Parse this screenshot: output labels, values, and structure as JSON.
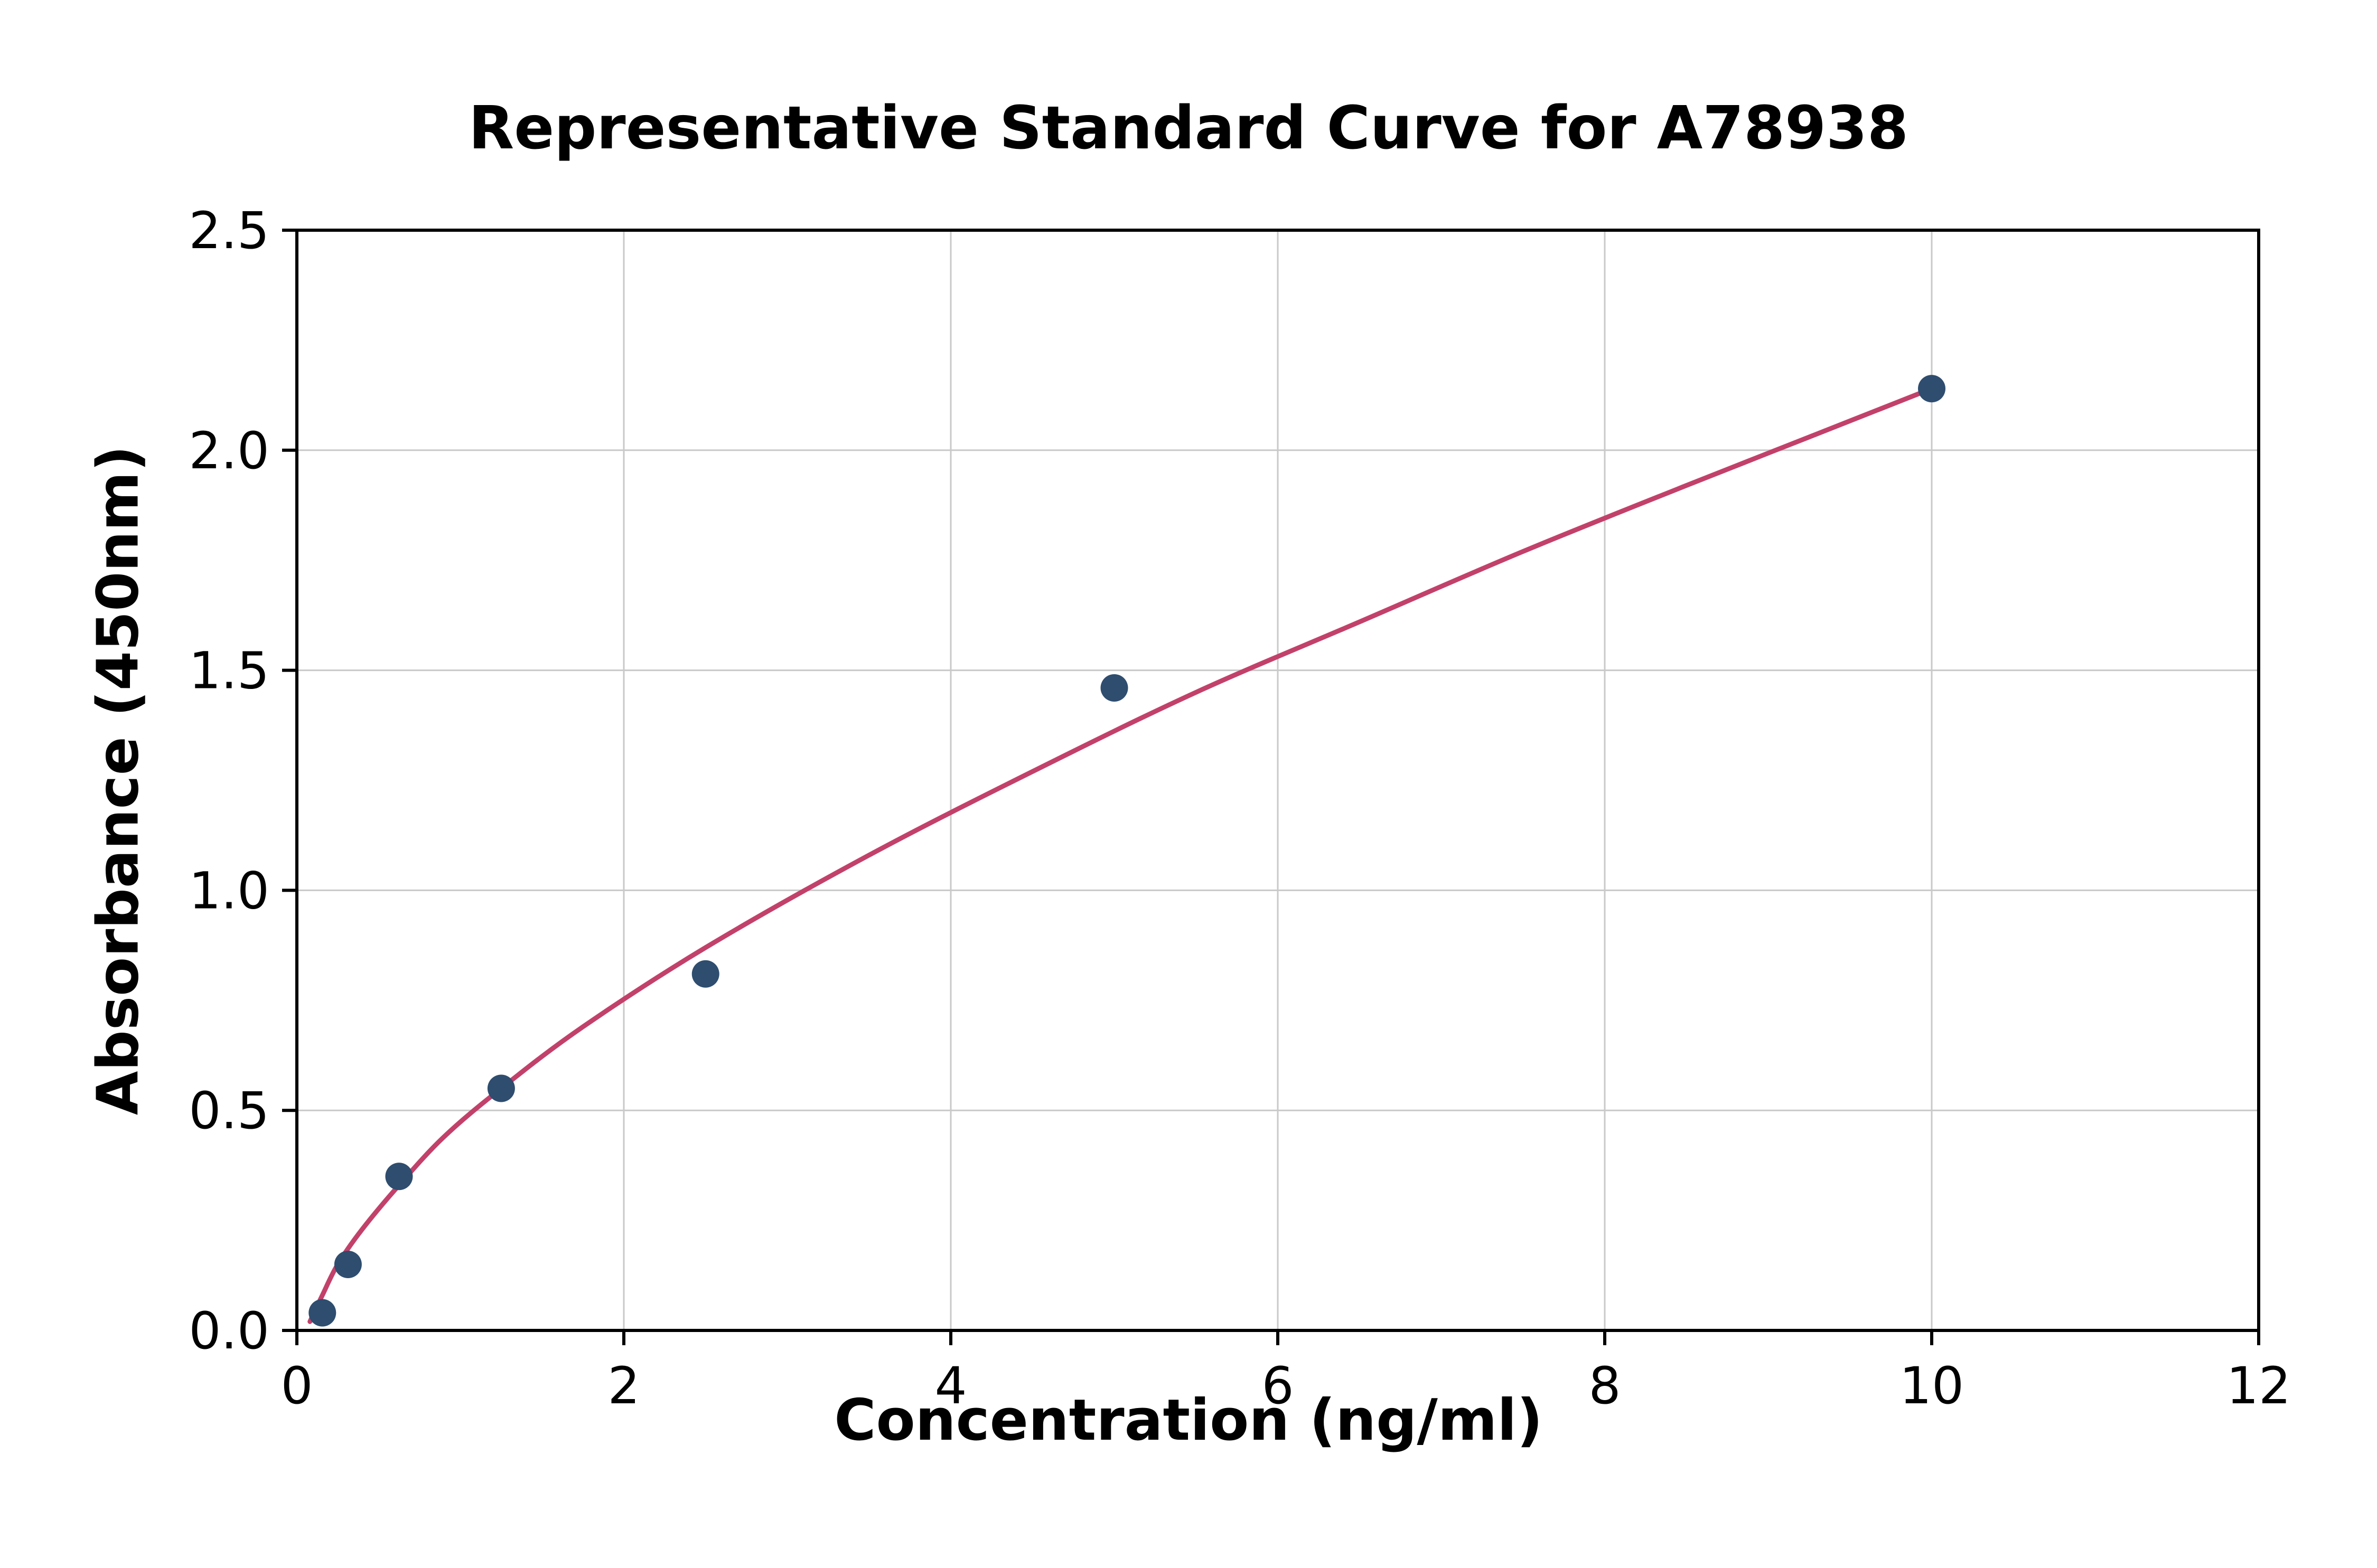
{
  "chart_data": {
    "type": "scatter",
    "title": "Representative Standard Curve for A78938",
    "xlabel": "Concentration (ng/ml)",
    "ylabel": "Absorbance (450nm)",
    "xlim": [
      0,
      12
    ],
    "ylim": [
      0,
      2.5
    ],
    "xticks": [
      0,
      2,
      4,
      6,
      8,
      10,
      12
    ],
    "xtick_labels": [
      "0",
      "2",
      "4",
      "6",
      "8",
      "10",
      "12"
    ],
    "yticks": [
      0,
      0.5,
      1.0,
      1.5,
      2.0,
      2.5
    ],
    "ytick_labels": [
      "0.0",
      "0.5",
      "1.0",
      "1.5",
      "2.0",
      "2.5"
    ],
    "grid": true,
    "legend": "none",
    "points": [
      {
        "x": 0.156,
        "y": 0.04
      },
      {
        "x": 0.313,
        "y": 0.15
      },
      {
        "x": 0.625,
        "y": 0.35
      },
      {
        "x": 1.25,
        "y": 0.55
      },
      {
        "x": 2.5,
        "y": 0.81
      },
      {
        "x": 5.0,
        "y": 1.46
      },
      {
        "x": 10.0,
        "y": 2.14
      }
    ],
    "fit_curve": [
      [
        0.08,
        0.02
      ],
      [
        0.156,
        0.08
      ],
      [
        0.25,
        0.15
      ],
      [
        0.4,
        0.23
      ],
      [
        0.625,
        0.33
      ],
      [
        0.9,
        0.44
      ],
      [
        1.25,
        0.55
      ],
      [
        1.75,
        0.69
      ],
      [
        2.5,
        0.87
      ],
      [
        3.5,
        1.08
      ],
      [
        4.5,
        1.27
      ],
      [
        5.5,
        1.45
      ],
      [
        6.5,
        1.61
      ],
      [
        7.5,
        1.77
      ],
      [
        8.5,
        1.92
      ],
      [
        9.25,
        2.03
      ],
      [
        10.0,
        2.14
      ]
    ],
    "colors": {
      "point": "#2e4d6f",
      "curve": "#c2416b",
      "grid": "#c9c9c9",
      "axis": "#000000",
      "background": "#ffffff"
    }
  }
}
